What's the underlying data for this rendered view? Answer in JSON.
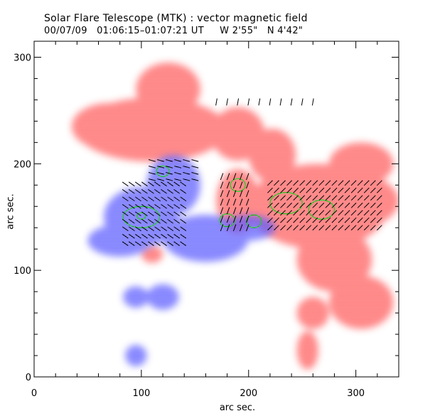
{
  "figure": {
    "title": "Solar Flare Telescope (MTK) : vector magnetic field",
    "subtitle": "00/07/09   01:06:15–01:07:21 UT     W 2'55\"   N 4'42\""
  },
  "chart_data": {
    "type": "heatmap",
    "title": "Solar Flare Telescope (MTK) : vector magnetic field",
    "subtitle": "00/07/09   01:06:15–01:07:21 UT     W 2'55\"   N 4'42\"",
    "xlabel": "arc sec.",
    "ylabel": "arc sec.",
    "xlim": [
      0,
      340
    ],
    "ylim": [
      0,
      315
    ],
    "xticks": [
      0,
      100,
      200,
      300
    ],
    "yticks": [
      0,
      100,
      200,
      300
    ],
    "xtick_labels": [
      "0",
      "100",
      "200",
      "300"
    ],
    "ytick_labels": [
      "0",
      "100",
      "200",
      "300"
    ],
    "colors": {
      "positive_polarity": "#ff3b3b",
      "negative_polarity": "#3b3bff",
      "contour": "#22cc22",
      "transverse_vectors": "#000000"
    },
    "red_regions": [
      {
        "x": 110,
        "y": 232,
        "rx": 70,
        "ry": 30
      },
      {
        "x": 70,
        "y": 235,
        "rx": 35,
        "ry": 22
      },
      {
        "x": 190,
        "y": 228,
        "rx": 25,
        "ry": 25
      },
      {
        "x": 222,
        "y": 208,
        "rx": 22,
        "ry": 25
      },
      {
        "x": 265,
        "y": 160,
        "rx": 65,
        "ry": 40
      },
      {
        "x": 300,
        "y": 165,
        "rx": 40,
        "ry": 25
      },
      {
        "x": 190,
        "y": 165,
        "rx": 20,
        "ry": 30
      },
      {
        "x": 305,
        "y": 200,
        "rx": 30,
        "ry": 20
      },
      {
        "x": 280,
        "y": 110,
        "rx": 35,
        "ry": 30
      },
      {
        "x": 305,
        "y": 70,
        "rx": 30,
        "ry": 25
      },
      {
        "x": 260,
        "y": 60,
        "rx": 15,
        "ry": 15
      },
      {
        "x": 255,
        "y": 25,
        "rx": 10,
        "ry": 18
      },
      {
        "x": 125,
        "y": 270,
        "rx": 30,
        "ry": 25
      },
      {
        "x": 110,
        "y": 115,
        "rx": 10,
        "ry": 8
      }
    ],
    "blue_regions": [
      {
        "x": 100,
        "y": 150,
        "rx": 35,
        "ry": 28
      },
      {
        "x": 130,
        "y": 180,
        "rx": 25,
        "ry": 28
      },
      {
        "x": 160,
        "y": 130,
        "rx": 40,
        "ry": 22
      },
      {
        "x": 200,
        "y": 140,
        "rx": 25,
        "ry": 12
      },
      {
        "x": 80,
        "y": 128,
        "rx": 30,
        "ry": 15
      },
      {
        "x": 120,
        "y": 75,
        "rx": 15,
        "ry": 12
      },
      {
        "x": 95,
        "y": 75,
        "rx": 12,
        "ry": 10
      },
      {
        "x": 95,
        "y": 20,
        "rx": 10,
        "ry": 10
      }
    ],
    "green_contours": [
      {
        "x": 100,
        "y": 150,
        "rx": 17,
        "ry": 10
      },
      {
        "x": 100,
        "y": 151,
        "rx": 4,
        "ry": 3
      },
      {
        "x": 120,
        "y": 193,
        "rx": 6,
        "ry": 5
      },
      {
        "x": 190,
        "y": 180,
        "rx": 7,
        "ry": 6
      },
      {
        "x": 180,
        "y": 147,
        "rx": 7,
        "ry": 6
      },
      {
        "x": 205,
        "y": 146,
        "rx": 7,
        "ry": 6
      },
      {
        "x": 235,
        "y": 163,
        "rx": 15,
        "ry": 10
      },
      {
        "x": 268,
        "y": 157,
        "rx": 12,
        "ry": 9
      }
    ],
    "vector_fields": [
      {
        "x_range": [
          85,
          140
        ],
        "y_range": [
          125,
          185
        ],
        "dx": 6,
        "dy": 7,
        "angle_deg": -35
      },
      {
        "x_range": [
          110,
          150
        ],
        "y_range": [
          185,
          205
        ],
        "dx": 8,
        "dy": 6,
        "angle_deg": -15
      },
      {
        "x_range": [
          175,
          200
        ],
        "y_range": [
          140,
          190
        ],
        "dx": 6,
        "dy": 8,
        "angle_deg": 70
      },
      {
        "x_range": [
          220,
          325
        ],
        "y_range": [
          140,
          185
        ],
        "dx": 6,
        "dy": 7,
        "angle_deg": 45
      },
      {
        "x_range": [
          170,
          265
        ],
        "y_range": [
          258,
          265
        ],
        "dx": 10,
        "dy": 10,
        "angle_deg": 80
      }
    ]
  }
}
